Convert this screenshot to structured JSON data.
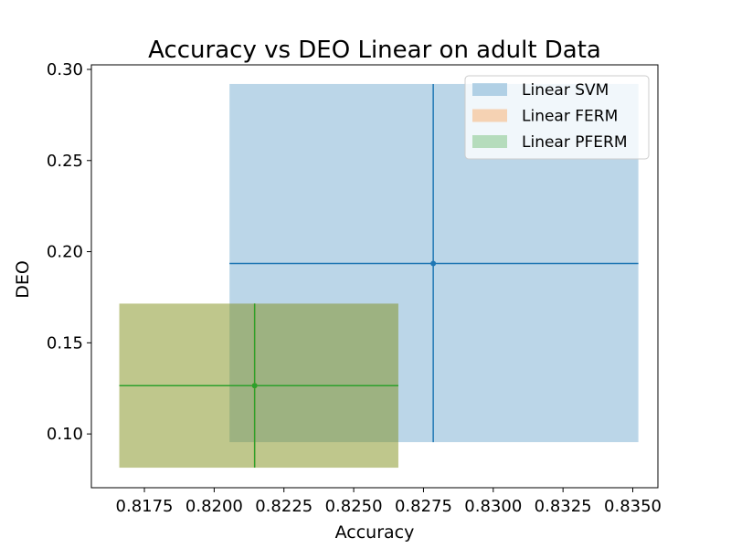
{
  "chart_data": {
    "type": "scatter",
    "title": "Accuracy vs DEO Linear on adult Data",
    "xlabel": "Accuracy",
    "ylabel": "DEO",
    "xlim": [
      0.8156,
      0.8359
    ],
    "ylim": [
      0.0705,
      0.3025
    ],
    "x_ticks": [
      0.8175,
      0.82,
      0.8225,
      0.825,
      0.8275,
      0.83,
      0.8325,
      0.835
    ],
    "x_tick_labels": [
      "0.8175",
      "0.8200",
      "0.8225",
      "0.8250",
      "0.8275",
      "0.8300",
      "0.8325",
      "0.8350"
    ],
    "y_ticks": [
      0.1,
      0.15,
      0.2,
      0.25,
      0.3
    ],
    "y_tick_labels": [
      "0.10",
      "0.15",
      "0.20",
      "0.25",
      "0.30"
    ],
    "legend_position": "upper-right",
    "series": [
      {
        "name": "Linear SVM",
        "color": "#1f77b4",
        "x": 0.82785,
        "y": 0.1935,
        "x_range": [
          0.82055,
          0.8352
        ],
        "y_range": [
          0.0955,
          0.292
        ]
      },
      {
        "name": "Linear FERM",
        "color": "#ff7f0e",
        "x": 0.82145,
        "y": 0.1265,
        "x_range": [
          0.8166,
          0.8266
        ],
        "y_range": [
          0.0815,
          0.1715
        ]
      },
      {
        "name": "Linear PFERM",
        "color": "#2ca02c",
        "x": 0.82145,
        "y": 0.1265,
        "x_range": [
          0.8166,
          0.8266
        ],
        "y_range": [
          0.0815,
          0.1715
        ]
      }
    ]
  }
}
